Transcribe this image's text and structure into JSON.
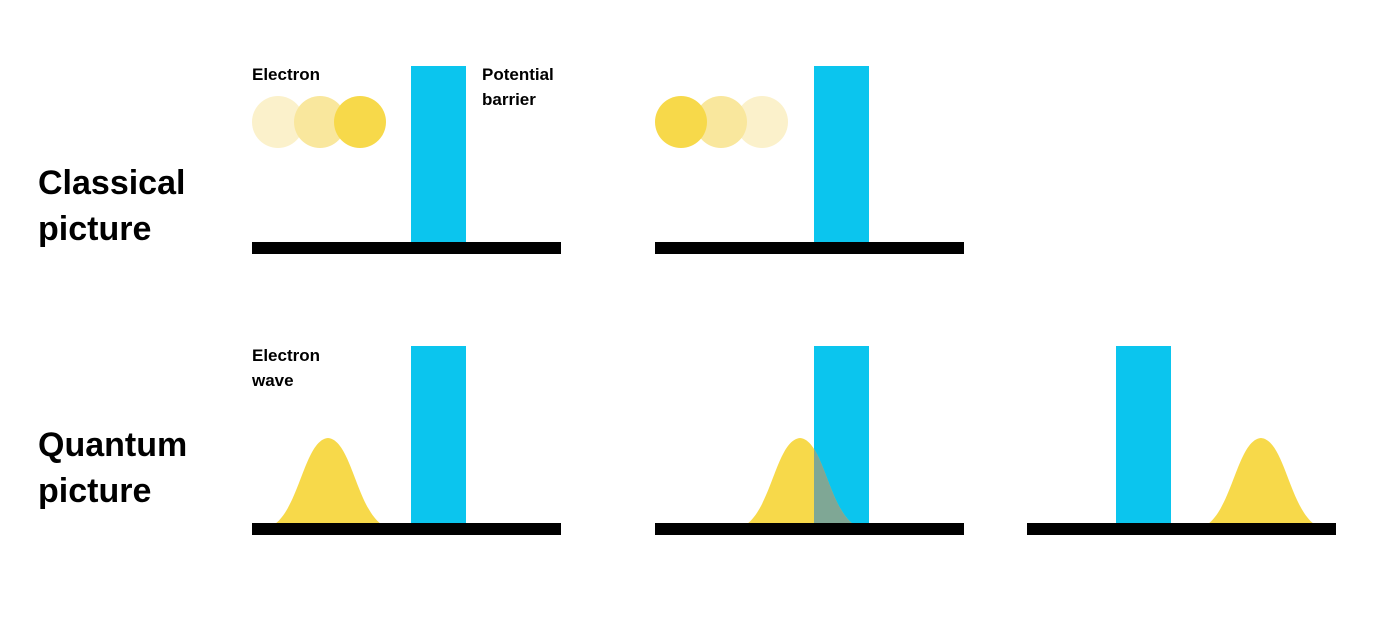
{
  "colors": {
    "barrier": "#0bc5ee",
    "electron": "#f7d94a",
    "electron_faded_1": "#f9e79d",
    "electron_faded_2": "#fbf1cb",
    "tunneling_overlap": "#7fa795",
    "ground": "#000000",
    "background": "#ffffff"
  },
  "rows": {
    "classical": {
      "label_line1": "Classical",
      "label_line2": "picture"
    },
    "quantum": {
      "label_line1": "Quantum",
      "label_line2": "picture"
    }
  },
  "annotations": {
    "electron": "Electron",
    "barrier_line1": "Potential",
    "barrier_line2": "barrier",
    "wave_line1": "Electron",
    "wave_line2": "wave"
  },
  "panels": {
    "classical": [
      {
        "id": "approach",
        "electron_motion": "toward barrier",
        "has_barrier": true
      },
      {
        "id": "reflected",
        "electron_motion": "bounced back from barrier",
        "has_barrier": true
      }
    ],
    "quantum": [
      {
        "id": "wave-approach",
        "wave_position": "left of barrier",
        "has_barrier": true
      },
      {
        "id": "wave-tunneling",
        "wave_position": "partially inside barrier",
        "has_barrier": true
      },
      {
        "id": "wave-transmitted",
        "wave_position": "right of barrier",
        "has_barrier": true
      }
    ]
  }
}
